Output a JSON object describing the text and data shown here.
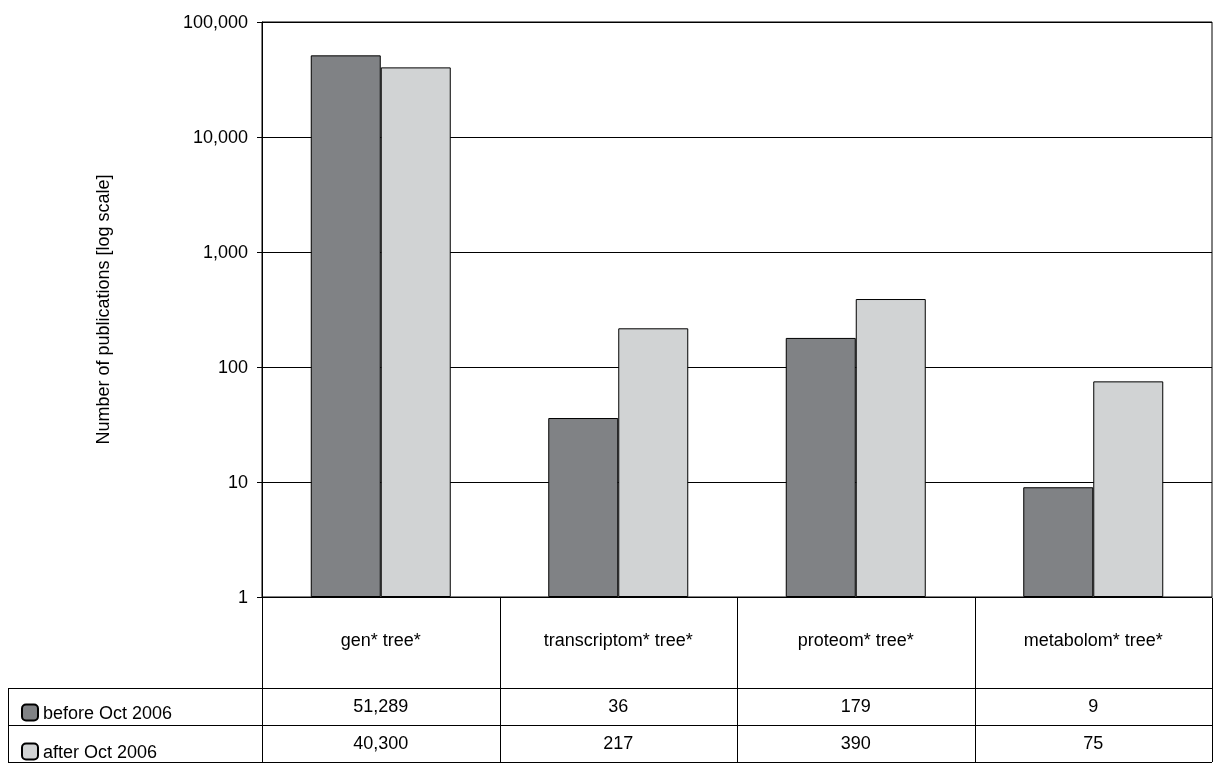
{
  "chart_data": {
    "type": "bar",
    "ylabel": "Number of publications [log scale]",
    "categories": [
      "gen* tree*",
      "transcriptom* tree*",
      "proteom* tree*",
      "metabolom* tree*"
    ],
    "series": [
      {
        "name": "before Oct 2006",
        "color": "#808285",
        "values": [
          51289,
          36,
          179,
          9
        ],
        "value_labels": [
          "51,289",
          "36",
          "179",
          "9"
        ]
      },
      {
        "name": "after Oct 2006",
        "color": "#d1d3d4",
        "values": [
          40300,
          217,
          390,
          75
        ],
        "value_labels": [
          "40,300",
          "217",
          "390",
          "75"
        ]
      }
    ],
    "log": "y",
    "ylim": [
      1,
      100000
    ],
    "yticks": [
      1,
      10,
      100,
      {
        "value": 1000,
        "label": "1,000"
      },
      {
        "value": 10000,
        "label": "10,000"
      },
      {
        "value": 100000,
        "label": "100,000"
      }
    ],
    "grid": "y",
    "legend": "bottom"
  }
}
